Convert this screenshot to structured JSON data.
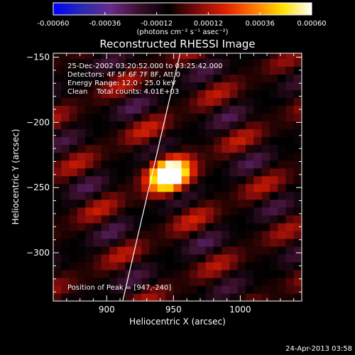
{
  "chart_data": {
    "type": "heatmap",
    "title": "Reconstructed RHESSI Image",
    "xlabel": "Heliocentric X (arcsec)",
    "ylabel": "Heliocentric Y (arcsec)",
    "xlim": [
      860,
      1046
    ],
    "ylim": [
      -337,
      -147
    ],
    "x_ticks": [
      900,
      950,
      1000
    ],
    "y_ticks": [
      -150,
      -200,
      -250,
      -300
    ],
    "colorbar": {
      "range": [
        -0.0006,
        0.0006
      ],
      "ticks": [
        "-0.00060",
        "-0.00036",
        "-0.00012",
        "0.00012",
        "0.00036",
        "0.00060"
      ],
      "unit_label": "(photons cm⁻² s⁻¹ asec⁻²)"
    },
    "annotations": {
      "time_range": "25-Dec-2002 03:20:52.000 to 03:25:42.000",
      "detectors": "Detectors: 4F 5F 6F 7F 8F, Att 0",
      "energy": "Energy Range: 12.0 - 25.0 keV",
      "clean": "Clean    Total counts: 4.01E+03",
      "peak": "Position of Peak = [947,-240]"
    },
    "peak": {
      "x": 947,
      "y": -240
    },
    "limb_line": [
      {
        "x": 955,
        "y": -147
      },
      {
        "x": 912,
        "y": -337
      }
    ],
    "footer_date": "24-Apr-2013 03:58"
  },
  "colors": {
    "background": "#000000",
    "axes": "#ffffff",
    "limb": "#ffffff",
    "colormap": [
      "#0000ff",
      "#2a2ab0",
      "#6a2a8a",
      "#3a0f2a",
      "#000000",
      "#7a0a0a",
      "#e02000",
      "#ff7800",
      "#ffe000",
      "#ffffff"
    ]
  }
}
